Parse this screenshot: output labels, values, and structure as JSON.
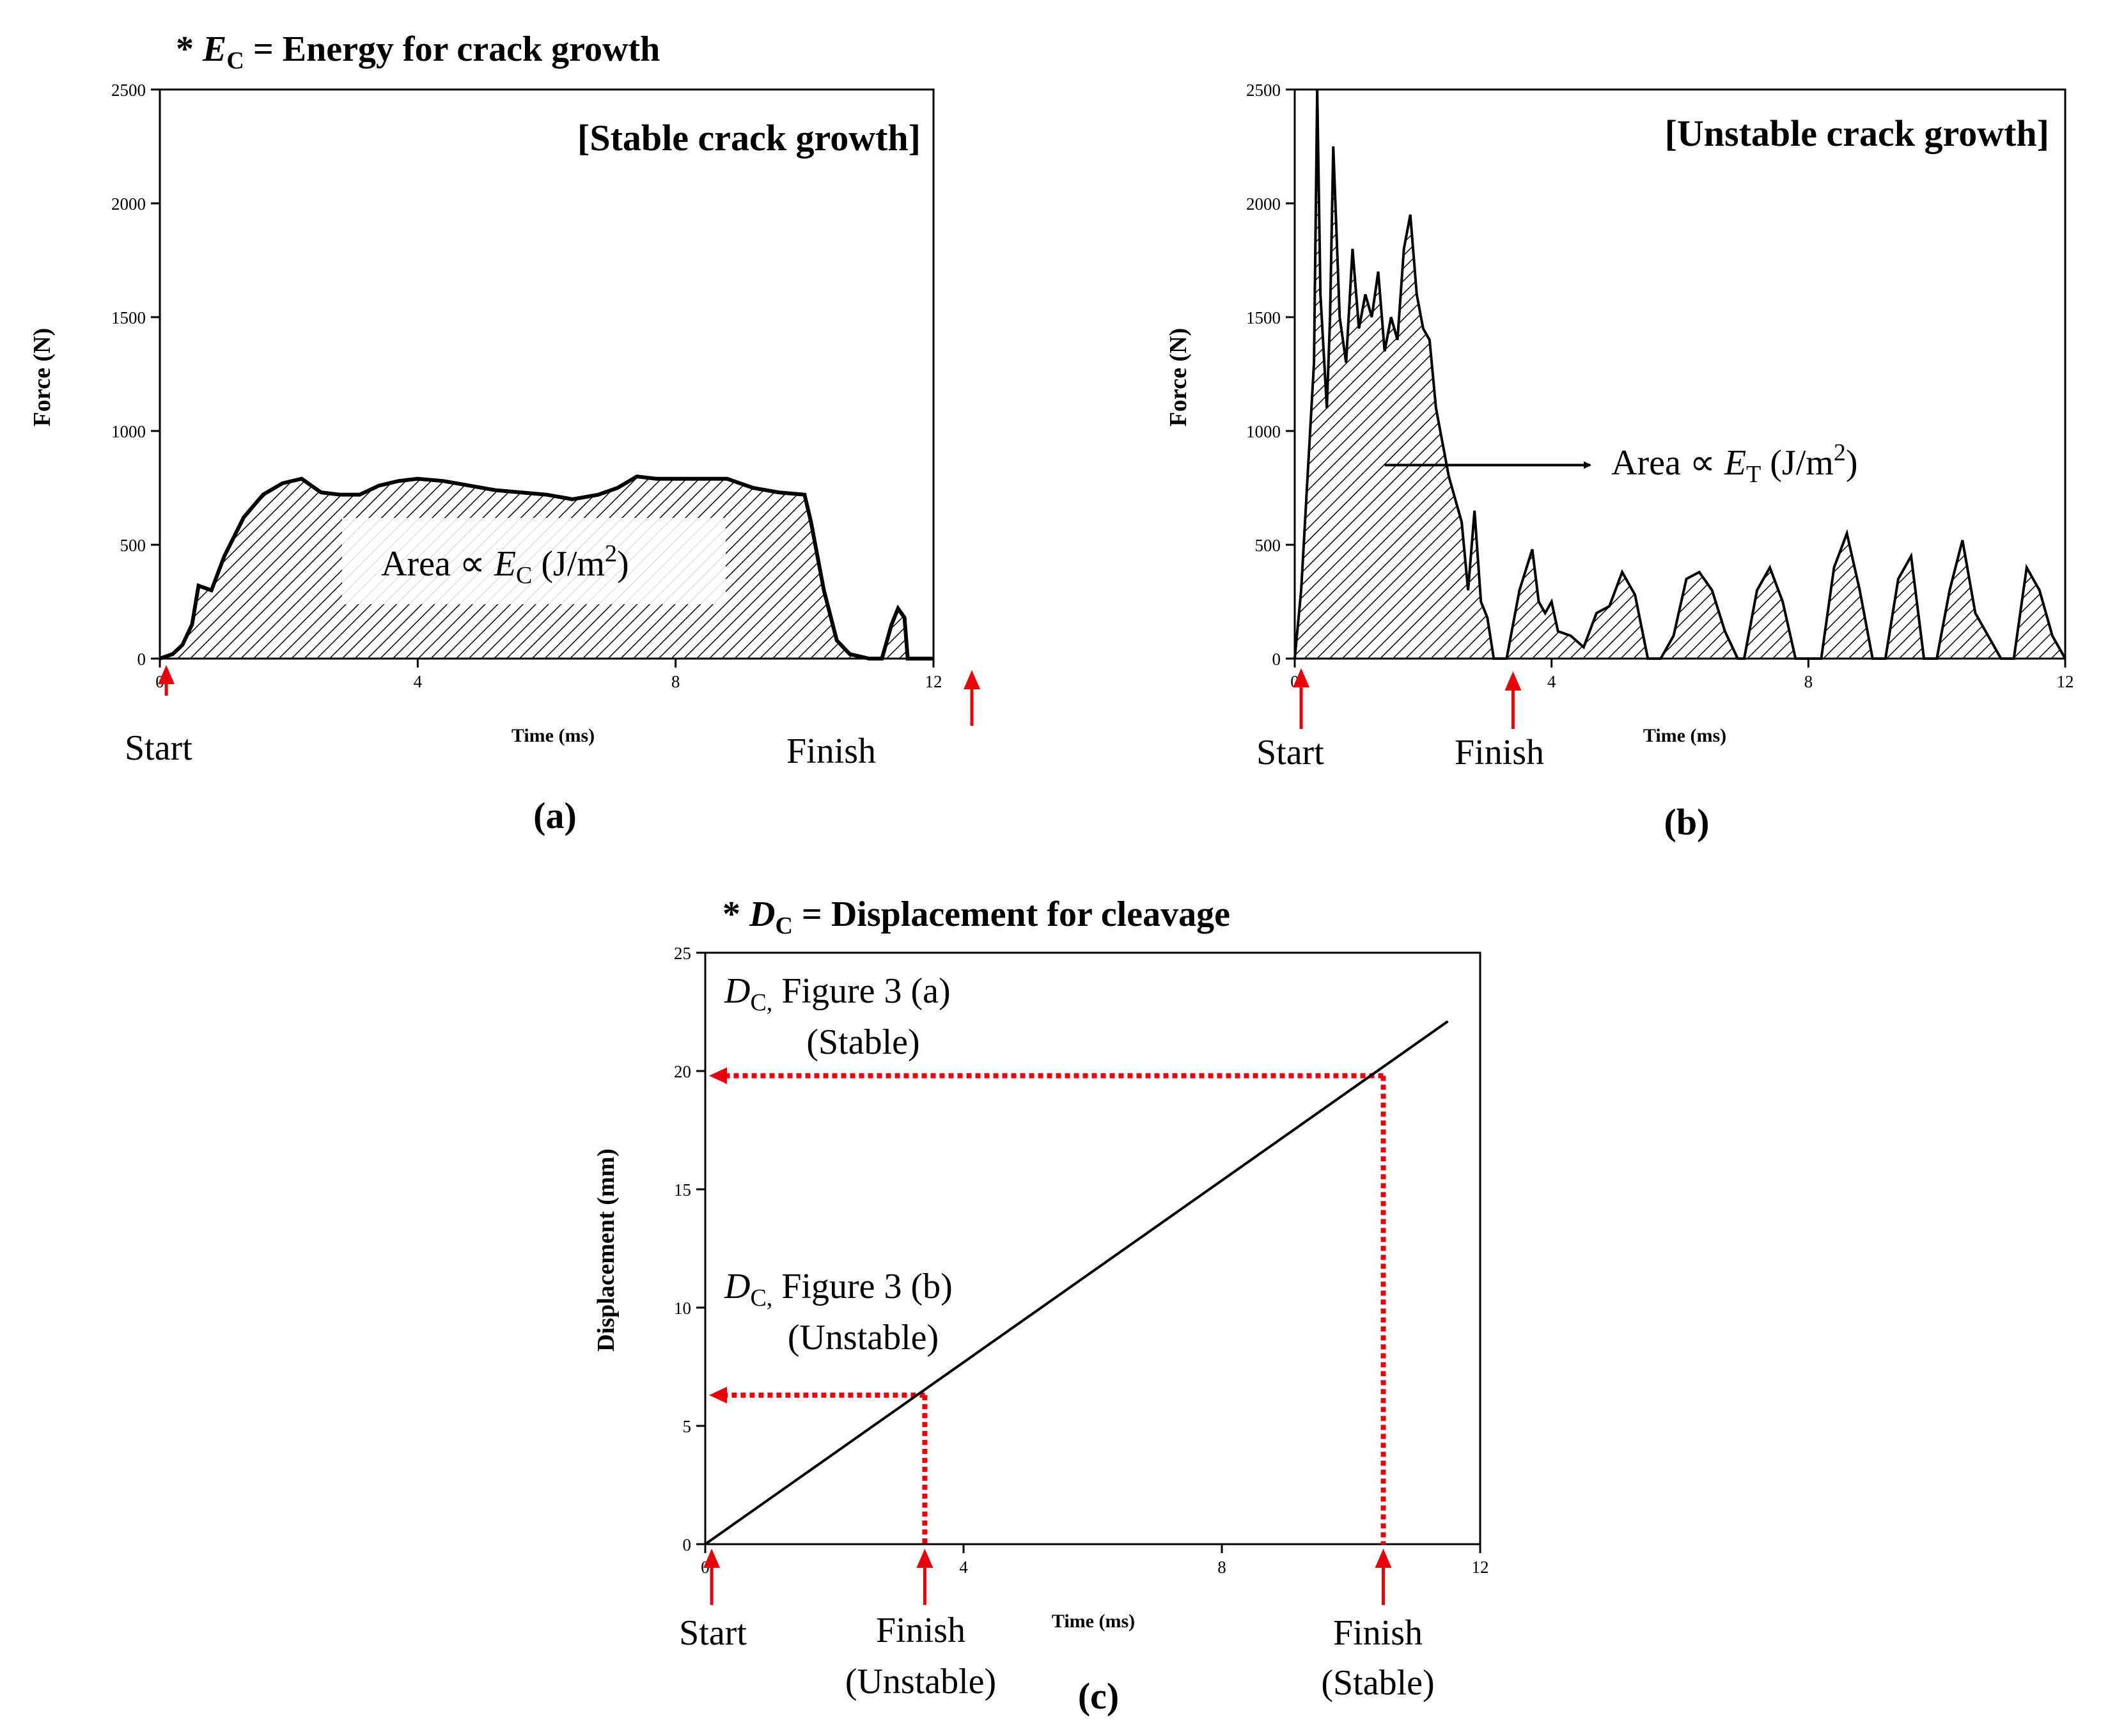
{
  "chart_data": [
    {
      "panel": "a",
      "type": "area",
      "title": "* E_C = Energy for crack growth",
      "title_prefix": "* ",
      "title_symbol": "E",
      "title_subscript": "C",
      "title_rest": " = Energy for crack growth",
      "inner_title": "[Stable crack growth]",
      "xlabel": "Time (ms)",
      "ylabel": "Force (N)",
      "xlim": [
        0,
        12
      ],
      "ylim": [
        0,
        2500
      ],
      "xticks": [
        "0",
        "4",
        "8",
        "12"
      ],
      "yticks": [
        "0",
        "500",
        "1000",
        "1500",
        "2000",
        "2500"
      ],
      "area_label": {
        "prefix": "Area ∝ ",
        "symbol": "E",
        "subscript": "C",
        "unit": " (J/m",
        "sup": "2",
        "close": ")"
      },
      "series": [
        {
          "name": "Force",
          "x": [
            0,
            0.2,
            0.35,
            0.5,
            0.6,
            0.8,
            1.0,
            1.3,
            1.6,
            1.9,
            2.2,
            2.5,
            2.8,
            3.1,
            3.4,
            3.7,
            4.0,
            4.4,
            4.8,
            5.2,
            5.6,
            6.0,
            6.4,
            6.8,
            7.1,
            7.4,
            7.7,
            8.0,
            8.4,
            8.8,
            9.2,
            9.6,
            10.0,
            10.1,
            10.3,
            10.5,
            10.7,
            11.0,
            11.2,
            11.35,
            11.45,
            11.55,
            11.6,
            12
          ],
          "y": [
            0,
            20,
            60,
            150,
            320,
            300,
            450,
            620,
            720,
            770,
            790,
            730,
            720,
            720,
            760,
            780,
            790,
            780,
            760,
            740,
            730,
            720,
            700,
            720,
            750,
            800,
            790,
            790,
            790,
            790,
            750,
            730,
            720,
            600,
            300,
            80,
            20,
            0,
            0,
            150,
            220,
            180,
            0,
            0
          ]
        }
      ],
      "annotations": [
        {
          "label": "Start",
          "x": 0.1
        },
        {
          "label": "Finish",
          "x": 12.7
        }
      ]
    },
    {
      "panel": "b",
      "type": "area",
      "inner_title": "[Unstable crack growth]",
      "xlabel": "Time (ms)",
      "ylabel": "Force (N)",
      "xlim": [
        0,
        12
      ],
      "ylim": [
        0,
        2500
      ],
      "xticks": [
        "0",
        "4",
        "8",
        "12"
      ],
      "yticks": [
        "0",
        "500",
        "1000",
        "1500",
        "2000",
        "2500"
      ],
      "area_label": {
        "prefix": "Area ∝ ",
        "symbol": "E",
        "subscript": "T",
        "unit": " (J/m",
        "sup": "2",
        "close": ")"
      },
      "series": [
        {
          "name": "Force",
          "x": [
            0,
            0.1,
            0.2,
            0.3,
            0.35,
            0.4,
            0.5,
            0.55,
            0.6,
            0.7,
            0.8,
            0.9,
            1.0,
            1.1,
            1.2,
            1.3,
            1.4,
            1.5,
            1.6,
            1.7,
            1.8,
            1.9,
            2.0,
            2.1,
            2.2,
            2.4,
            2.6,
            2.7,
            2.8,
            2.9,
            3.0,
            3.1,
            3.3,
            3.5,
            3.7,
            3.8,
            3.9,
            4.0,
            4.1,
            4.3,
            4.5,
            4.7,
            4.9,
            5.1,
            5.3,
            5.5,
            5.7,
            5.9,
            6.1,
            6.3,
            6.5,
            6.7,
            6.9,
            7.0,
            7.2,
            7.4,
            7.6,
            7.8,
            8.0,
            8.2,
            8.4,
            8.6,
            8.8,
            9.0,
            9.2,
            9.4,
            9.6,
            9.8,
            10.0,
            10.2,
            10.4,
            10.6,
            10.8,
            11.0,
            11.2,
            11.4,
            11.6,
            11.8,
            12.0
          ],
          "y": [
            0,
            300,
            800,
            1300,
            2500,
            1600,
            1100,
            1500,
            2250,
            1500,
            1300,
            1800,
            1450,
            1600,
            1500,
            1700,
            1350,
            1500,
            1400,
            1800,
            1950,
            1600,
            1450,
            1400,
            1100,
            800,
            600,
            300,
            650,
            250,
            180,
            0,
            0,
            300,
            480,
            250,
            200,
            250,
            120,
            100,
            50,
            200,
            230,
            380,
            280,
            0,
            0,
            100,
            350,
            380,
            300,
            120,
            0,
            0,
            300,
            400,
            250,
            0,
            0,
            0,
            400,
            550,
            300,
            0,
            0,
            350,
            450,
            0,
            0,
            300,
            520,
            200,
            100,
            0,
            0,
            400,
            300,
            100,
            0
          ]
        }
      ],
      "annotations": [
        {
          "label": "Start",
          "x": 0.1
        },
        {
          "label": "Finish",
          "x": 3.4
        },
        {
          "label": "Area label arrow",
          "from_x": 1.4,
          "to_x": 4.6,
          "y": 850
        }
      ]
    },
    {
      "panel": "c",
      "type": "line",
      "title": "* D_C = Displacement for cleavage",
      "title_prefix": "* ",
      "title_symbol": "D",
      "title_subscript": "C",
      "title_rest": " = Displacement for cleavage",
      "xlabel": "Time (ms)",
      "ylabel": "Displacement (mm)",
      "xlim": [
        0,
        12
      ],
      "ylim": [
        0,
        25
      ],
      "xticks": [
        "0",
        "4",
        "8",
        "12"
      ],
      "yticks": [
        "0",
        "5",
        "10",
        "15",
        "20",
        "25"
      ],
      "series": [
        {
          "name": "Displacement",
          "x": [
            0,
            11.5
          ],
          "y": [
            0,
            22.1
          ]
        }
      ],
      "dc_labels": [
        {
          "symbol": "D",
          "subscript": "C,",
          "text": " Figure 3 (a)",
          "line2": "(Stable)",
          "value": 19.8
        },
        {
          "symbol": "D",
          "subscript": "C,",
          "text": " Figure 3 (b)",
          "line2": "(Unstable)",
          "value": 6.3
        }
      ],
      "guides": [
        {
          "x": 10.5,
          "y": 19.8
        },
        {
          "x": 3.4,
          "y": 6.3
        }
      ],
      "annotations": [
        {
          "label": "Start",
          "label2": "",
          "x": 0.1
        },
        {
          "label": "Finish",
          "label2": "(Unstable)",
          "x": 3.4
        },
        {
          "label": "Finish",
          "label2": "(Stable)",
          "x": 10.5
        }
      ]
    }
  ],
  "panel_labels": [
    "(a)",
    "(b)",
    "(c)"
  ],
  "colors": {
    "guide": "#e8000b",
    "line": "#000000",
    "hatch": "#000000"
  }
}
